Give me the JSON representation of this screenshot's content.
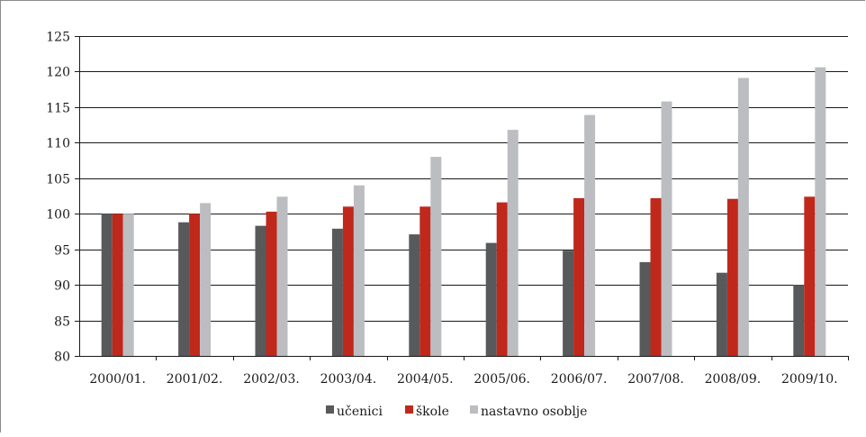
{
  "chart_data": {
    "type": "bar",
    "title": "",
    "xlabel": "",
    "ylabel": "",
    "ylim": [
      80,
      125
    ],
    "yticks": [
      80,
      85,
      90,
      95,
      100,
      105,
      110,
      115,
      120,
      125
    ],
    "ytick_labels": [
      "80",
      "85",
      "90",
      "95",
      "100",
      "105",
      "110",
      "115",
      "120",
      "125"
    ],
    "grid": true,
    "legend_position": "bottom",
    "categories": [
      "2000/01.",
      "2001/02.",
      "2002/03.",
      "2003/04.",
      "2004/05.",
      "2005/06.",
      "2006/07.",
      "2007/08.",
      "2008/09.",
      "2009/10."
    ],
    "series": [
      {
        "name": "učenici",
        "color": "#58595b",
        "values": [
          100,
          98.8,
          98.3,
          97.9,
          97.1,
          95.9,
          94.8,
          93.2,
          91.7,
          90.0
        ]
      },
      {
        "name": "škole",
        "color": "#c0281c",
        "values": [
          100,
          100,
          100.3,
          101.0,
          101.0,
          101.6,
          102.2,
          102.2,
          102.1,
          102.4
        ]
      },
      {
        "name": "nastavno osoblje",
        "color": "#bcbdc0",
        "values": [
          100,
          101.5,
          102.4,
          104.0,
          108.0,
          111.8,
          113.9,
          115.8,
          119.1,
          120.6
        ]
      }
    ]
  }
}
